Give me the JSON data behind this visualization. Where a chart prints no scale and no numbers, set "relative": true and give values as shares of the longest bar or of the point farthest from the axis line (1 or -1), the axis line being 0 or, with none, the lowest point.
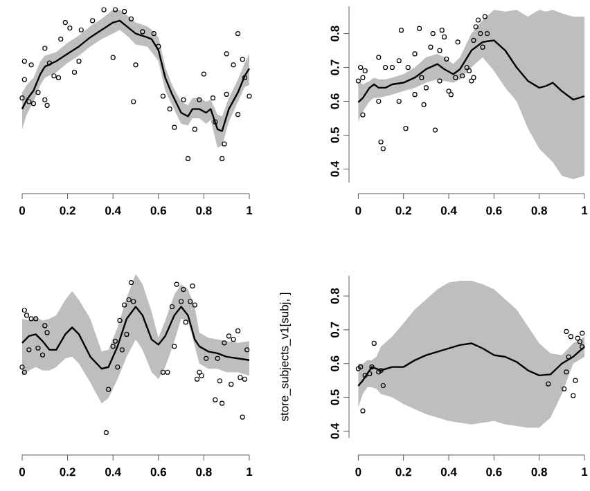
{
  "chart_data": [
    {
      "type": "line",
      "relative": true,
      "xlim": [
        0,
        1
      ],
      "xticks": [
        0,
        0.2,
        0.4,
        0.6,
        0.8,
        1
      ],
      "series": [
        {
          "type": "line",
          "color": "#000000",
          "x": [
            0,
            0.02,
            0.05,
            0.08,
            0.1,
            0.15,
            0.2,
            0.25,
            0.3,
            0.35,
            0.4,
            0.43,
            0.47,
            0.5,
            0.55,
            0.57,
            0.6,
            0.63,
            0.66,
            0.7,
            0.73,
            0.75,
            0.78,
            0.81,
            0.83,
            0.86,
            0.88,
            0.91,
            0.95,
            0.98,
            1
          ],
          "values": [
            0.46,
            0.51,
            0.56,
            0.65,
            0.69,
            0.72,
            0.76,
            0.8,
            0.85,
            0.89,
            0.93,
            0.94,
            0.9,
            0.87,
            0.85,
            0.84,
            0.78,
            0.63,
            0.54,
            0.44,
            0.42,
            0.46,
            0.46,
            0.44,
            0.46,
            0.35,
            0.34,
            0.46,
            0.55,
            0.64,
            0.68
          ],
          "lower": [
            0.35,
            0.43,
            0.5,
            0.59,
            0.63,
            0.66,
            0.71,
            0.75,
            0.8,
            0.84,
            0.87,
            0.89,
            0.85,
            0.81,
            0.8,
            0.77,
            0.72,
            0.56,
            0.48,
            0.38,
            0.37,
            0.41,
            0.41,
            0.38,
            0.4,
            0.25,
            0.26,
            0.39,
            0.5,
            0.58,
            0.59
          ],
          "upper": [
            0.55,
            0.59,
            0.63,
            0.72,
            0.75,
            0.77,
            0.82,
            0.86,
            0.91,
            0.95,
            1.0,
            1.0,
            0.96,
            0.93,
            0.91,
            0.89,
            0.85,
            0.69,
            0.59,
            0.5,
            0.48,
            0.52,
            0.52,
            0.5,
            0.51,
            0.43,
            0.42,
            0.52,
            0.62,
            0.71,
            0.76
          ]
        },
        {
          "type": "scatter",
          "color": "#000000",
          "marker": "circle",
          "x": [
            0,
            0.01,
            0.01,
            0.04,
            0.03,
            0.05,
            0.07,
            0.1,
            0.1,
            0.11,
            0.12,
            0.14,
            0.16,
            0.17,
            0.19,
            0.21,
            0.23,
            0.25,
            0.26,
            0.31,
            0.36,
            0.4,
            0.41,
            0.45,
            0.48,
            0.49,
            0.5,
            0.53,
            0.58,
            0.6,
            0.62,
            0.65,
            0.67,
            0.71,
            0.73,
            0.76,
            0.78,
            0.8,
            0.84,
            0.85,
            0.88,
            0.89,
            0.9,
            0.9,
            0.93,
            0.95,
            0.95,
            0.97,
            1.0,
            0.98
          ],
          "values": [
            0.52,
            0.62,
            0.72,
            0.7,
            0.5,
            0.49,
            0.55,
            0.79,
            0.51,
            0.48,
            0.71,
            0.64,
            0.63,
            0.84,
            0.93,
            0.9,
            0.66,
            0.72,
            0.89,
            0.94,
            1.0,
            0.74,
            1.0,
            0.99,
            0.95,
            0.5,
            0.7,
            0.88,
            0.87,
            0.8,
            0.53,
            0.46,
            0.36,
            0.51,
            0.19,
            0.35,
            0.51,
            0.65,
            0.52,
            0.39,
            0.19,
            0.27,
            0.54,
            0.76,
            0.7,
            0.43,
            0.87,
            0.73,
            0.53,
            0.63
          ]
        }
      ]
    },
    {
      "type": "line",
      "xlim": [
        0,
        1
      ],
      "xticks": [
        0,
        0.2,
        0.4,
        0.6,
        0.8,
        1
      ],
      "ylim": [
        0.36,
        0.88
      ],
      "yticks": [
        0.4,
        0.5,
        0.6,
        0.7,
        0.8
      ],
      "series": [
        {
          "type": "line",
          "color": "#000000",
          "x": [
            0,
            0.02,
            0.05,
            0.07,
            0.09,
            0.12,
            0.15,
            0.2,
            0.25,
            0.3,
            0.35,
            0.38,
            0.42,
            0.45,
            0.5,
            0.55,
            0.6,
            0.65,
            0.7,
            0.75,
            0.8,
            0.83,
            0.86,
            0.9,
            0.95,
            1
          ],
          "values": [
            0.597,
            0.61,
            0.64,
            0.65,
            0.64,
            0.64,
            0.65,
            0.655,
            0.67,
            0.695,
            0.71,
            0.695,
            0.68,
            0.695,
            0.75,
            0.775,
            0.78,
            0.75,
            0.7,
            0.66,
            0.64,
            0.645,
            0.655,
            0.63,
            0.605,
            0.615
          ],
          "lower": [
            0.54,
            0.57,
            0.6,
            0.61,
            0.61,
            0.615,
            0.62,
            0.63,
            0.64,
            0.655,
            0.665,
            0.66,
            0.655,
            0.665,
            0.7,
            0.73,
            0.69,
            0.64,
            0.6,
            0.52,
            0.46,
            0.44,
            0.42,
            0.38,
            0.37,
            0.38
          ],
          "upper": [
            0.66,
            0.65,
            0.66,
            0.67,
            0.665,
            0.665,
            0.67,
            0.68,
            0.7,
            0.73,
            0.74,
            0.73,
            0.71,
            0.73,
            0.8,
            0.84,
            0.87,
            0.865,
            0.87,
            0.85,
            0.87,
            0.865,
            0.87,
            0.86,
            0.85,
            0.85
          ]
        },
        {
          "type": "scatter",
          "color": "#000000",
          "marker": "circle",
          "x": [
            0,
            0.01,
            0.02,
            0.03,
            0.02,
            0.09,
            0.09,
            0.1,
            0.11,
            0.12,
            0.15,
            0.18,
            0.18,
            0.19,
            0.21,
            0.22,
            0.25,
            0.25,
            0.27,
            0.28,
            0.29,
            0.3,
            0.32,
            0.33,
            0.34,
            0.36,
            0.36,
            0.37,
            0.38,
            0.39,
            0.4,
            0.41,
            0.43,
            0.44,
            0.46,
            0.48,
            0.49,
            0.5,
            0.51,
            0.51,
            0.52,
            0.53,
            0.54,
            0.55,
            0.56,
            0.57
          ],
          "values": [
            0.66,
            0.7,
            0.56,
            0.69,
            0.67,
            0.73,
            0.6,
            0.48,
            0.46,
            0.7,
            0.7,
            0.72,
            0.6,
            0.81,
            0.52,
            0.7,
            0.74,
            0.62,
            0.815,
            0.67,
            0.59,
            0.64,
            0.76,
            0.8,
            0.515,
            0.75,
            0.66,
            0.81,
            0.79,
            0.725,
            0.63,
            0.62,
            0.67,
            0.775,
            0.675,
            0.7,
            0.69,
            0.66,
            0.78,
            0.67,
            0.82,
            0.84,
            0.8,
            0.76,
            0.85,
            0.8
          ]
        }
      ]
    },
    {
      "type": "line",
      "relative": true,
      "xlim": [
        0,
        1
      ],
      "xticks": [
        0,
        0.2,
        0.4,
        0.6,
        0.8,
        1
      ],
      "series": [
        {
          "type": "line",
          "color": "#000000",
          "x": [
            0,
            0.03,
            0.06,
            0.09,
            0.12,
            0.15,
            0.19,
            0.22,
            0.25,
            0.3,
            0.35,
            0.38,
            0.42,
            0.46,
            0.5,
            0.53,
            0.57,
            0.6,
            0.63,
            0.67,
            0.7,
            0.73,
            0.76,
            0.78,
            0.82,
            0.86,
            0.9,
            0.95,
            1
          ],
          "values": [
            0.65,
            0.69,
            0.7,
            0.66,
            0.61,
            0.61,
            0.7,
            0.74,
            0.7,
            0.57,
            0.5,
            0.51,
            0.63,
            0.79,
            0.86,
            0.81,
            0.67,
            0.64,
            0.69,
            0.81,
            0.86,
            0.81,
            0.67,
            0.63,
            0.6,
            0.59,
            0.57,
            0.56,
            0.55
          ],
          "lower": [
            0.46,
            0.49,
            0.51,
            0.49,
            0.49,
            0.51,
            0.56,
            0.57,
            0.53,
            0.42,
            0.3,
            0.33,
            0.44,
            0.57,
            0.67,
            0.61,
            0.48,
            0.44,
            0.51,
            0.66,
            0.79,
            0.78,
            0.63,
            0.53,
            0.5,
            0.5,
            0.48,
            0.48,
            0.46
          ],
          "upper": [
            0.79,
            0.78,
            0.8,
            0.78,
            0.79,
            0.81,
            0.9,
            0.95,
            0.9,
            0.79,
            0.6,
            0.61,
            0.74,
            0.91,
            1.05,
            0.99,
            0.83,
            0.68,
            0.78,
            0.93,
            0.99,
            0.96,
            0.86,
            0.71,
            0.68,
            0.67,
            0.66,
            0.65,
            0.66
          ]
        },
        {
          "type": "scatter",
          "color": "#000000",
          "marker": "circle",
          "x": [
            0,
            0.01,
            0.01,
            0.02,
            0.03,
            0.04,
            0.06,
            0.07,
            0.09,
            0.1,
            0.11,
            0.38,
            0.37,
            0.4,
            0.41,
            0.42,
            0.43,
            0.44,
            0.45,
            0.46,
            0.47,
            0.48,
            0.49,
            0.62,
            0.64,
            0.66,
            0.67,
            0.68,
            0.7,
            0.71,
            0.72,
            0.74,
            0.75,
            0.76,
            0.77,
            0.78,
            0.79,
            0.81,
            0.85,
            0.86,
            0.87,
            0.88,
            0.89,
            0.91,
            0.92,
            0.93,
            0.95,
            0.96,
            0.97,
            0.98,
            0.99
          ],
          "values": [
            0.51,
            0.48,
            0.84,
            0.81,
            0.61,
            0.79,
            0.79,
            0.62,
            0.58,
            0.75,
            0.71,
            0.38,
            0.13,
            0.63,
            0.66,
            0.51,
            0.78,
            0.61,
            0.87,
            0.7,
            0.9,
            1.0,
            0.89,
            0.48,
            0.48,
            0.86,
            0.63,
            0.99,
            0.89,
            0.96,
            0.77,
            0.89,
            0.98,
            0.87,
            0.44,
            0.48,
            0.46,
            0.56,
            0.32,
            0.56,
            0.43,
            0.3,
            0.65,
            0.69,
            0.41,
            0.67,
            0.72,
            0.45,
            0.22,
            0.44,
            0.61
          ]
        }
      ]
    },
    {
      "type": "line",
      "xlim": [
        0,
        1
      ],
      "xticks": [
        0,
        0.2,
        0.4,
        0.6,
        0.8,
        1
      ],
      "ylim": [
        0.38,
        0.86
      ],
      "yticks": [
        0.4,
        0.5,
        0.6,
        0.7,
        0.8
      ],
      "ylabel": "store_subjects_v1[subj, ]",
      "series": [
        {
          "type": "line",
          "color": "#000000",
          "x": [
            0,
            0.02,
            0.04,
            0.06,
            0.08,
            0.1,
            0.15,
            0.2,
            0.25,
            0.3,
            0.35,
            0.4,
            0.45,
            0.5,
            0.55,
            0.6,
            0.65,
            0.7,
            0.75,
            0.8,
            0.85,
            0.9,
            0.95,
            1
          ],
          "values": [
            0.534,
            0.55,
            0.57,
            0.59,
            0.585,
            0.58,
            0.59,
            0.59,
            0.61,
            0.625,
            0.635,
            0.645,
            0.655,
            0.66,
            0.645,
            0.625,
            0.62,
            0.605,
            0.58,
            0.565,
            0.568,
            0.6,
            0.62,
            0.65
          ],
          "lower": [
            0.47,
            0.51,
            0.53,
            0.53,
            0.525,
            0.51,
            0.5,
            0.48,
            0.465,
            0.45,
            0.44,
            0.43,
            0.425,
            0.42,
            0.425,
            0.43,
            0.42,
            0.415,
            0.41,
            0.41,
            0.44,
            0.51,
            0.6,
            0.62
          ],
          "upper": [
            0.6,
            0.6,
            0.61,
            0.61,
            0.62,
            0.65,
            0.68,
            0.72,
            0.76,
            0.79,
            0.82,
            0.84,
            0.845,
            0.845,
            0.835,
            0.82,
            0.79,
            0.76,
            0.71,
            0.66,
            0.63,
            0.625,
            0.66,
            0.68
          ]
        },
        {
          "type": "scatter",
          "color": "#000000",
          "marker": "circle",
          "x": [
            0,
            0.01,
            0.02,
            0.03,
            0.05,
            0.06,
            0.07,
            0.09,
            0.1,
            0.11,
            0.84,
            0.91,
            0.92,
            0.92,
            0.93,
            0.94,
            0.95,
            0.96,
            0.97,
            0.98,
            0.99,
            0.99
          ],
          "values": [
            0.585,
            0.59,
            0.46,
            0.565,
            0.57,
            0.59,
            0.66,
            0.575,
            0.58,
            0.535,
            0.54,
            0.525,
            0.575,
            0.695,
            0.62,
            0.68,
            0.505,
            0.55,
            0.675,
            0.665,
            0.65,
            0.69
          ]
        }
      ]
    }
  ]
}
